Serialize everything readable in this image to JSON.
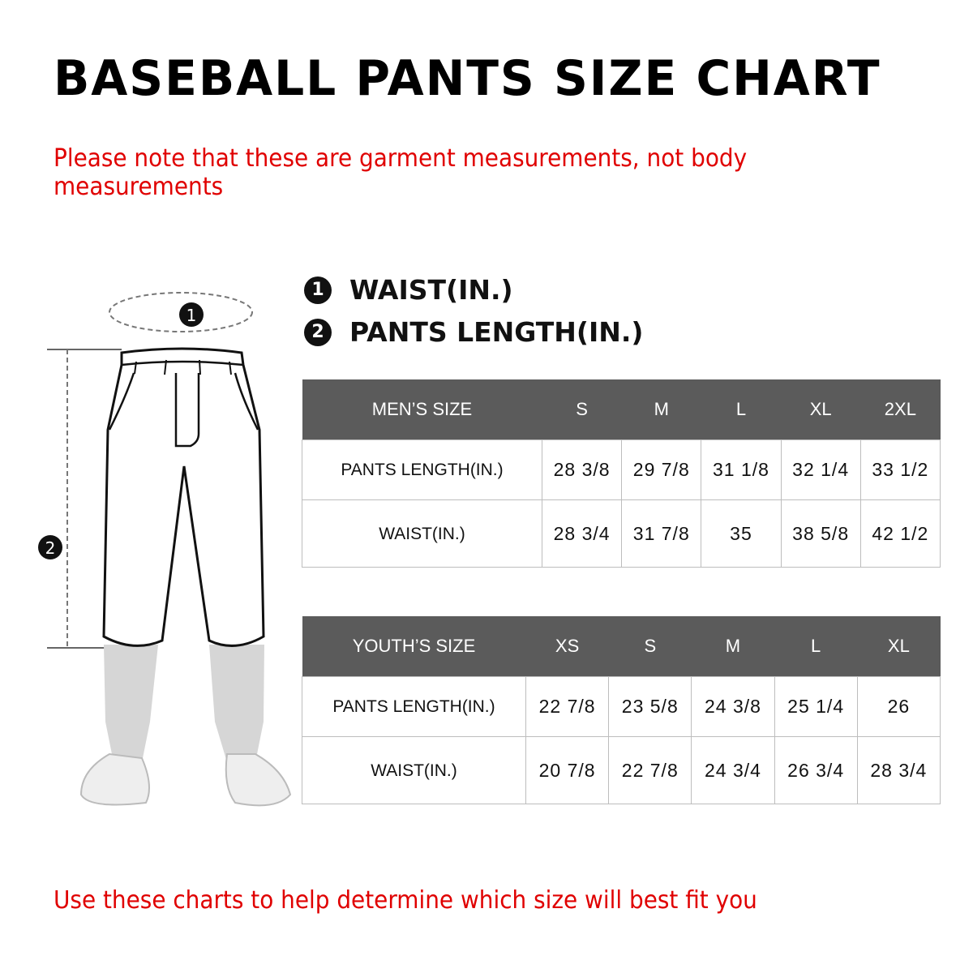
{
  "title": "BASEBALL PANTS SIZE CHART",
  "note": "Please note that these are garment measurements, not body measurements",
  "legend": [
    {
      "marker": "1",
      "label": "WAIST(IN.)"
    },
    {
      "marker": "2",
      "label": "PANTS LENGTH(IN.)"
    }
  ],
  "illustration": {
    "waist_marker": "1",
    "length_marker": "2"
  },
  "mens_table": {
    "header": [
      "MEN’S SIZE",
      "S",
      "M",
      "L",
      "XL",
      "2XL"
    ],
    "rows": [
      [
        "PANTS LENGTH(IN.)",
        "28 3/8",
        "29 7/8",
        "31 1/8",
        "32 1/4",
        "33 1/2"
      ],
      [
        "WAIST(IN.)",
        "28 3/4",
        "31 7/8",
        "35",
        "38 5/8",
        "42 1/2"
      ]
    ]
  },
  "youth_table": {
    "header": [
      "YOUTH’S SIZE",
      "XS",
      "S",
      "M",
      "L",
      "XL"
    ],
    "rows": [
      [
        "PANTS LENGTH(IN.)",
        "22 7/8",
        "23 5/8",
        "24 3/8",
        "25 1/4",
        "26"
      ],
      [
        "WAIST(IN.)",
        "20 7/8",
        "22 7/8",
        "24 3/4",
        "26 3/4",
        "28 3/4"
      ]
    ]
  },
  "footer": "Use these charts to help determine which size will best fit you",
  "colors": {
    "accent_red": "#e00000",
    "table_header": "#5b5b5b",
    "border": "#bdbdbd"
  }
}
